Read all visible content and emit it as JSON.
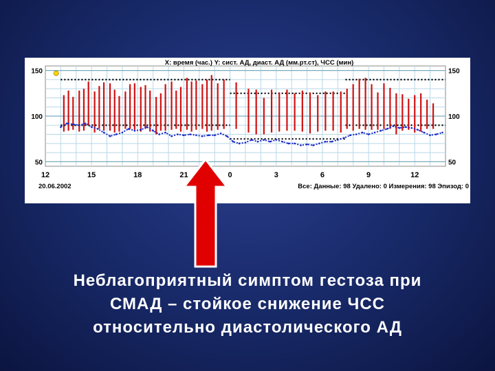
{
  "slide": {
    "caption_lines": [
      "Неблагоприятный симптом гестоза при",
      "СМАД – стойкое снижение ЧСС",
      "относительно диастолического АД"
    ],
    "background_color": "#172866",
    "arrow_color": "#e00000"
  },
  "chart_data": {
    "type": "bar",
    "title": "X: время (час.)  Y: сист. АД, диаст. АД (мм.рт.ст), ЧСС (мин)",
    "date": "20.06.2002",
    "footer": "Все: Данные: 98  Удалено: 0  Измерения: 98  Эпизод: 0",
    "x_tick_labels": [
      "12",
      "15",
      "18",
      "21",
      "0",
      "3",
      "6",
      "9",
      "12"
    ],
    "x_tick_hours": [
      12,
      15,
      18,
      21,
      24,
      27,
      30,
      33,
      36
    ],
    "x_range": [
      12,
      38
    ],
    "y_tick_labels": [
      "150",
      "100",
      "50"
    ],
    "y_ticks": [
      150,
      100,
      50
    ],
    "y_range": [
      45,
      155
    ],
    "y_gridlines": [
      60,
      70,
      80,
      90,
      110,
      120,
      130,
      140
    ],
    "threshold_series": [
      {
        "name": "day_sys",
        "color": "#000000",
        "segments": [
          [
            13,
            24,
            140
          ],
          [
            31.5,
            38,
            140
          ]
        ]
      },
      {
        "name": "night_sys",
        "color": "#000000",
        "segments": [
          [
            24,
            31.5,
            125
          ]
        ]
      },
      {
        "name": "day_dia",
        "color": "#000000",
        "segments": [
          [
            13,
            24,
            90
          ],
          [
            31.5,
            38,
            90
          ]
        ]
      },
      {
        "name": "night_dia",
        "color": "#000000",
        "segments": [
          [
            24,
            31.5,
            75
          ]
        ]
      }
    ],
    "bp_bars": {
      "color": "#d01010",
      "points": [
        [
          13.2,
          123,
          83
        ],
        [
          13.5,
          128,
          84
        ],
        [
          13.8,
          121,
          85
        ],
        [
          14.2,
          128,
          83
        ],
        [
          14.5,
          130,
          84
        ],
        [
          14.8,
          138,
          90
        ],
        [
          15.2,
          127,
          82
        ],
        [
          15.5,
          133,
          86
        ],
        [
          15.8,
          137,
          84
        ],
        [
          16.2,
          136,
          84
        ],
        [
          16.5,
          129,
          82
        ],
        [
          16.8,
          122,
          83
        ],
        [
          17.2,
          127,
          86
        ],
        [
          17.5,
          135,
          86
        ],
        [
          17.8,
          136,
          85
        ],
        [
          18.2,
          132,
          83
        ],
        [
          18.5,
          134,
          86
        ],
        [
          18.8,
          128,
          83
        ],
        [
          19.2,
          121,
          80
        ],
        [
          19.5,
          125,
          84
        ],
        [
          19.8,
          135,
          84
        ],
        [
          20.2,
          138,
          85
        ],
        [
          20.5,
          128,
          86
        ],
        [
          20.8,
          132,
          83
        ],
        [
          21.2,
          142,
          85
        ],
        [
          21.5,
          138,
          83
        ],
        [
          21.8,
          139,
          85
        ],
        [
          22.2,
          135,
          86
        ],
        [
          22.5,
          140,
          83
        ],
        [
          22.8,
          145,
          84
        ],
        [
          23.2,
          136,
          85
        ],
        [
          23.6,
          140,
          86
        ],
        [
          24.4,
          137,
          86
        ],
        [
          25.2,
          130,
          82
        ],
        [
          25.7,
          129,
          80
        ],
        [
          26.2,
          120,
          80
        ],
        [
          26.7,
          129,
          82
        ],
        [
          27.2,
          126,
          83
        ],
        [
          27.7,
          129,
          84
        ],
        [
          28.2,
          125,
          84
        ],
        [
          28.7,
          128,
          83
        ],
        [
          29.2,
          126,
          81
        ],
        [
          29.7,
          123,
          83
        ],
        [
          30.2,
          127,
          84
        ],
        [
          30.7,
          127,
          84
        ],
        [
          31.2,
          127,
          82
        ],
        [
          31.6,
          130,
          86
        ],
        [
          32.0,
          135,
          84
        ],
        [
          32.4,
          141,
          86
        ],
        [
          32.8,
          142,
          85
        ],
        [
          33.2,
          135,
          85
        ],
        [
          33.6,
          126,
          85
        ],
        [
          34.0,
          136,
          86
        ],
        [
          34.4,
          131,
          86
        ],
        [
          34.8,
          125,
          80
        ],
        [
          35.2,
          124,
          84
        ],
        [
          35.6,
          119,
          85
        ],
        [
          36.0,
          123,
          82
        ],
        [
          36.4,
          125,
          83
        ],
        [
          36.8,
          118,
          86
        ],
        [
          37.2,
          114,
          86
        ]
      ]
    },
    "hr_series": {
      "name": "ЧСС",
      "color": "#1a2ac8",
      "values": [
        [
          13.0,
          88
        ],
        [
          13.4,
          92
        ],
        [
          13.8,
          91
        ],
        [
          14.2,
          90
        ],
        [
          14.6,
          92
        ],
        [
          15.0,
          88
        ],
        [
          15.4,
          86
        ],
        [
          15.8,
          82
        ],
        [
          16.2,
          78
        ],
        [
          16.6,
          80
        ],
        [
          17.0,
          82
        ],
        [
          17.4,
          86
        ],
        [
          17.8,
          84
        ],
        [
          18.2,
          85
        ],
        [
          18.6,
          88
        ],
        [
          19.0,
          84
        ],
        [
          19.4,
          80
        ],
        [
          19.8,
          82
        ],
        [
          20.2,
          78
        ],
        [
          20.6,
          80
        ],
        [
          21.0,
          79
        ],
        [
          21.4,
          80
        ],
        [
          21.8,
          79
        ],
        [
          22.2,
          78
        ],
        [
          22.6,
          79
        ],
        [
          23.0,
          79
        ],
        [
          23.4,
          81
        ],
        [
          23.8,
          78
        ],
        [
          24.2,
          72
        ],
        [
          24.6,
          70
        ],
        [
          25.0,
          71
        ],
        [
          25.4,
          74
        ],
        [
          25.8,
          72
        ],
        [
          26.2,
          74
        ],
        [
          26.6,
          72
        ],
        [
          27.0,
          74
        ],
        [
          27.4,
          72
        ],
        [
          27.8,
          70
        ],
        [
          28.2,
          70
        ],
        [
          28.6,
          68
        ],
        [
          29.0,
          69
        ],
        [
          29.4,
          68
        ],
        [
          29.8,
          70
        ],
        [
          30.2,
          72
        ],
        [
          30.6,
          72
        ],
        [
          31.0,
          74
        ],
        [
          31.4,
          76
        ],
        [
          31.8,
          79
        ],
        [
          32.2,
          80
        ],
        [
          32.6,
          82
        ],
        [
          33.0,
          80
        ],
        [
          33.4,
          82
        ],
        [
          33.8,
          84
        ],
        [
          34.2,
          86
        ],
        [
          34.6,
          89
        ],
        [
          35.0,
          87
        ],
        [
          35.4,
          88
        ],
        [
          35.8,
          87
        ],
        [
          36.2,
          85
        ],
        [
          36.6,
          82
        ],
        [
          37.0,
          79
        ],
        [
          37.4,
          80
        ],
        [
          37.8,
          82
        ]
      ]
    },
    "marker": {
      "x": 12.7,
      "y": 147,
      "color": "#ffd800"
    }
  }
}
